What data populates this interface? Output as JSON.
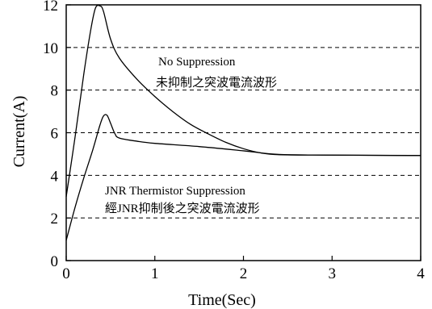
{
  "chart_data": {
    "type": "line",
    "xlabel": "Time(Sec)",
    "ylabel": "Current(A)",
    "xlim": [
      0,
      4
    ],
    "ylim": [
      0,
      12
    ],
    "xticks": [
      "0",
      "1",
      "2",
      "3",
      "4"
    ],
    "yticks": [
      "0",
      "2",
      "4",
      "6",
      "8",
      "10",
      "12"
    ],
    "grid": "dashed horizontal at 2, 4, 6, 8, 10",
    "series": [
      {
        "key": "no_suppression",
        "color": "#000000",
        "points": [
          [
            0,
            3.0
          ],
          [
            0.1,
            5.8
          ],
          [
            0.2,
            8.8
          ],
          [
            0.28,
            10.9
          ],
          [
            0.33,
            11.85
          ],
          [
            0.38,
            11.95
          ],
          [
            0.42,
            11.7
          ],
          [
            0.5,
            10.4
          ],
          [
            0.6,
            9.5
          ],
          [
            0.8,
            8.5
          ],
          [
            1.0,
            7.7
          ],
          [
            1.2,
            7.0
          ],
          [
            1.4,
            6.4
          ],
          [
            1.6,
            5.95
          ],
          [
            1.8,
            5.55
          ],
          [
            2.0,
            5.25
          ],
          [
            2.2,
            5.05
          ],
          [
            2.4,
            4.97
          ],
          [
            3.0,
            4.95
          ],
          [
            4.0,
            4.93
          ]
        ]
      },
      {
        "key": "jnr_suppression",
        "color": "#000000",
        "points": [
          [
            0,
            0.95
          ],
          [
            0.1,
            2.5
          ],
          [
            0.2,
            3.9
          ],
          [
            0.3,
            5.2
          ],
          [
            0.38,
            6.35
          ],
          [
            0.42,
            6.78
          ],
          [
            0.46,
            6.82
          ],
          [
            0.5,
            6.45
          ],
          [
            0.55,
            5.95
          ],
          [
            0.6,
            5.75
          ],
          [
            0.8,
            5.6
          ],
          [
            1.0,
            5.5
          ],
          [
            1.5,
            5.35
          ],
          [
            2.0,
            5.15
          ],
          [
            2.4,
            4.98
          ],
          [
            3.0,
            4.95
          ],
          [
            4.0,
            4.93
          ]
        ]
      }
    ],
    "annotations": {
      "no_suppression_en": "No Suppression",
      "no_suppression_zh": "未抑制之突波電流波形",
      "jnr_en": "JNR Thermistor Suppression",
      "jnr_zh": "經JNR抑制後之突波電流波形"
    }
  }
}
